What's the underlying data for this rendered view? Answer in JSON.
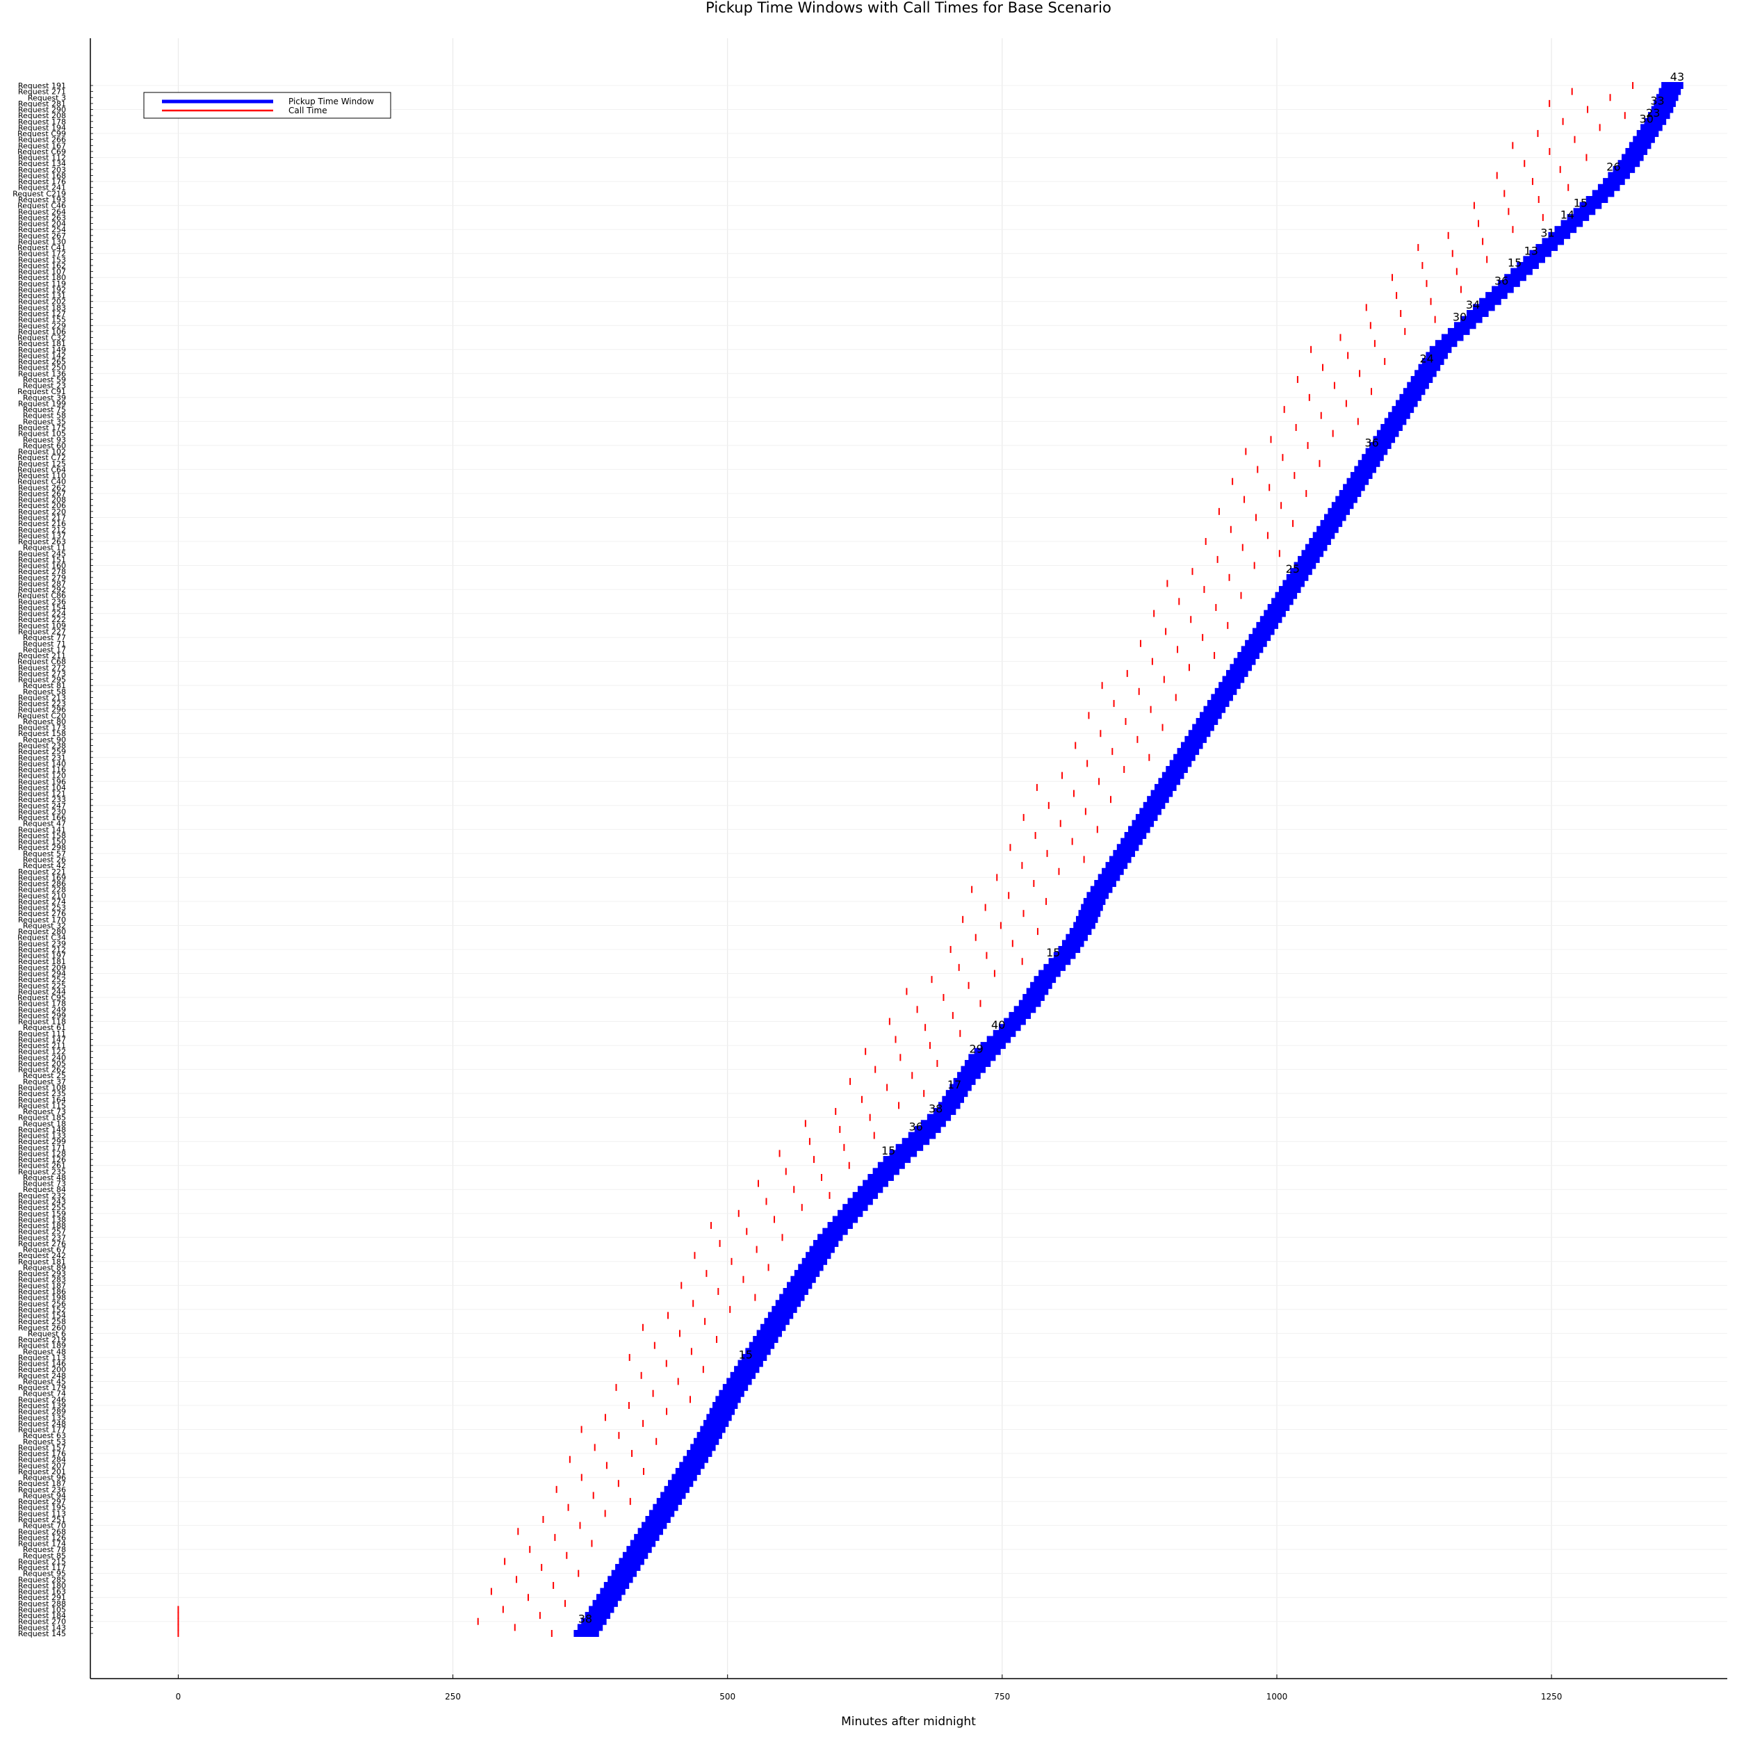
{
  "chart_data": {
    "type": "scatter",
    "title": "Pickup Time Windows with Call Times for Base Scenario",
    "xlabel": "Minutes after midnight",
    "ylabel": "",
    "xlim": [
      -80,
      1410
    ],
    "xticks": [
      0,
      250,
      500,
      750,
      1000,
      1250
    ],
    "grid": true,
    "legend": {
      "placement": "top-left",
      "entries": [
        {
          "label": "Pickup Time Window",
          "color": "#0000ff"
        },
        {
          "label": "Call Time",
          "color": "#ff0000"
        }
      ]
    },
    "series": [
      {
        "name": "Pickup Time Window",
        "color": "#0000ff",
        "marker": "horizontal band, one row per request, from pickup window start to end"
      },
      {
        "name": "Call Time",
        "color": "#ff0000",
        "marker": "short red tick per request at call time"
      }
    ],
    "request_count": 300,
    "y_tick_labels_top_to_bottom": [
      "Request 191",
      "Request 271",
      "Request 3",
      "Request 281",
      "Request 290",
      "Request 208",
      "Request 178",
      "Request 194",
      "Request C99",
      "Request 266",
      "Request 167",
      "Request C69",
      "Request 112",
      "Request 134",
      "Request 203",
      "Request 168",
      "Request 176",
      "Request 241",
      "Request C219",
      "Request 193",
      "Request C46",
      "Request 264",
      "Request 263",
      "Request 204",
      "Request 254",
      "Request 267",
      "Request 130",
      "Request C41",
      "Request 172",
      "Request 153",
      "Request 162",
      "Request 107",
      "Request 180",
      "Request 119",
      "Request 192",
      "Request 131",
      "Request 202",
      "Request 183",
      "Request 127",
      "Request 155",
      "Request 229",
      "Request 106",
      "Request C32",
      "Request 181",
      "Request 149",
      "Request 142",
      "Request 265",
      "Request 250",
      "Request 136",
      "Request 59",
      "Request 23",
      "Request C91",
      "Request 39",
      "Request 199",
      "Request 75",
      "Request 58",
      "Request 35",
      "Request 175",
      "Request 105",
      "Request 93",
      "Request 60",
      "Request 102",
      "Request C72",
      "Request 125",
      "Request C64",
      "Request 110",
      "Request C40",
      "Request 262",
      "Request 267",
      "Request 208",
      "Request 206",
      "Request 220",
      "Request 217",
      "Request 216",
      "Request 212",
      "Request 137",
      "Request 263",
      "Request 11",
      "Request 245",
      "Request 151",
      "Request 160",
      "Request 278",
      "Request 279",
      "Request 287",
      "Request 292",
      "Request C86",
      "Request 236",
      "Request 154",
      "Request 224",
      "Request 222",
      "Request 109",
      "Request 227",
      "Request 77",
      "Request 71",
      "Request 17",
      "Request 211",
      "Request C68",
      "Request 272",
      "Request 273",
      "Request 295",
      "Request 81",
      "Request 58",
      "Request 213",
      "Request 223",
      "Request 296",
      "Request C20",
      "Request 80",
      "Request 173",
      "Request 158",
      "Request 90",
      "Request 238",
      "Request 259",
      "Request 231",
      "Request 140",
      "Request 116",
      "Request 120",
      "Request 196",
      "Request 104",
      "Request 121",
      "Request 233",
      "Request 247",
      "Request 230",
      "Request 166",
      "Request 47",
      "Request 141",
      "Request 158",
      "Request 150",
      "Request 298",
      "Request 57",
      "Request 26",
      "Request 42",
      "Request 221",
      "Request 169",
      "Request 286",
      "Request 228",
      "Request 210",
      "Request 274",
      "Request 253",
      "Request 276",
      "Request 170",
      "Request 32",
      "Request 280",
      "Request C34",
      "Request 239",
      "Request 212",
      "Request 197",
      "Request 181",
      "Request 209",
      "Request 294",
      "Request 252",
      "Request 225",
      "Request 244",
      "Request C95",
      "Request 178",
      "Request 249",
      "Request 299",
      "Request 118",
      "Request 61",
      "Request 111",
      "Request 147",
      "Request 211",
      "Request 122",
      "Request 240",
      "Request 205",
      "Request 262",
      "Request 25",
      "Request 37",
      "Request 108",
      "Request 235",
      "Request 164",
      "Request 115",
      "Request 73",
      "Request 185",
      "Request 18",
      "Request 148",
      "Request 133",
      "Request 299",
      "Request 171",
      "Request 128",
      "Request 126",
      "Request 261",
      "Request 235",
      "Request 48",
      "Request 73",
      "Request 84",
      "Request 232",
      "Request 243",
      "Request 255",
      "Request 159",
      "Request 138",
      "Request 188",
      "Request 257",
      "Request 237",
      "Request 276",
      "Request 67",
      "Request 242",
      "Request 181",
      "Request 89",
      "Request 293",
      "Request 283",
      "Request 187",
      "Request 186",
      "Request 198",
      "Request 256",
      "Request 152",
      "Request 154",
      "Request 258",
      "Request 260",
      "Request 6",
      "Request 219",
      "Request 189",
      "Request 48",
      "Request 113",
      "Request 146",
      "Request 200",
      "Request 248",
      "Request 45",
      "Request 179",
      "Request 74",
      "Request 246",
      "Request 139",
      "Request 289",
      "Request 135",
      "Request 248",
      "Request 177",
      "Request 63",
      "Request 53",
      "Request 157",
      "Request 176",
      "Request 284",
      "Request 207",
      "Request 201",
      "Request 96",
      "Request 187",
      "Request 236",
      "Request 94",
      "Request 297",
      "Request 195",
      "Request 113",
      "Request 251",
      "Request 70",
      "Request 268",
      "Request 126",
      "Request 174",
      "Request 78",
      "Request 85",
      "Request 215",
      "Request 117",
      "Request 95",
      "Request 285",
      "Request 180",
      "Request 163",
      "Request 291",
      "Request 288",
      "Request 105",
      "Request 184",
      "Request 270",
      "Request 143",
      "Request 145"
    ],
    "call_time_cluster_at_zero": [
      0,
      0,
      0,
      0,
      0
    ],
    "window_points": [
      [
        360,
        383
      ],
      [
        375,
        398
      ],
      [
        390,
        413
      ],
      [
        405,
        428
      ],
      [
        420,
        443
      ],
      [
        435,
        458
      ],
      [
        450,
        473
      ],
      [
        465,
        488
      ],
      [
        478,
        501
      ],
      [
        490,
        513
      ],
      [
        505,
        528
      ],
      [
        520,
        543
      ],
      [
        535,
        558
      ],
      [
        550,
        573
      ],
      [
        565,
        588
      ],
      [
        580,
        603
      ],
      [
        600,
        623
      ],
      [
        620,
        643
      ],
      [
        640,
        665
      ],
      [
        665,
        690
      ],
      [
        690,
        710
      ],
      [
        705,
        725
      ],
      [
        720,
        745
      ],
      [
        745,
        765
      ],
      [
        765,
        785
      ],
      [
        780,
        800
      ],
      [
        800,
        820
      ],
      [
        815,
        835
      ],
      [
        825,
        845
      ],
      [
        840,
        860
      ],
      [
        855,
        875
      ],
      [
        870,
        890
      ],
      [
        885,
        905
      ],
      [
        900,
        920
      ],
      [
        915,
        935
      ],
      [
        930,
        950
      ],
      [
        945,
        965
      ],
      [
        960,
        980
      ],
      [
        975,
        995
      ],
      [
        990,
        1010
      ],
      [
        1005,
        1025
      ],
      [
        1020,
        1040
      ],
      [
        1035,
        1055
      ],
      [
        1050,
        1070
      ],
      [
        1065,
        1085
      ],
      [
        1080,
        1100
      ],
      [
        1095,
        1115
      ],
      [
        1110,
        1130
      ],
      [
        1125,
        1145
      ],
      [
        1140,
        1160
      ],
      [
        1165,
        1185
      ],
      [
        1190,
        1210
      ],
      [
        1215,
        1235
      ],
      [
        1240,
        1260
      ],
      [
        1265,
        1285
      ],
      [
        1290,
        1310
      ],
      [
        1310,
        1330
      ],
      [
        1325,
        1345
      ],
      [
        1340,
        1360
      ],
      [
        1350,
        1370
      ]
    ],
    "window_count_labels": [
      {
        "x": 364,
        "label": "38"
      },
      {
        "x": 740,
        "label": "40"
      },
      {
        "x": 790,
        "label": "15"
      },
      {
        "x": 1008,
        "label": "25"
      },
      {
        "x": 1130,
        "label": "24"
      },
      {
        "x": 1160,
        "label": "30"
      },
      {
        "x": 1172,
        "label": "34"
      },
      {
        "x": 1198,
        "label": "36"
      },
      {
        "x": 1225,
        "label": "13"
      },
      {
        "x": 1258,
        "label": "14"
      },
      {
        "x": 1336,
        "label": "23"
      },
      {
        "x": 1358,
        "label": "43"
      },
      {
        "x": 1340,
        "label": "33"
      },
      {
        "x": 1330,
        "label": "30"
      },
      {
        "x": 1300,
        "label": "26"
      },
      {
        "x": 1270,
        "label": "15"
      },
      {
        "x": 1240,
        "label": "31"
      },
      {
        "x": 1210,
        "label": "15"
      },
      {
        "x": 640,
        "label": "15"
      },
      {
        "x": 665,
        "label": "36"
      },
      {
        "x": 683,
        "label": "38"
      },
      {
        "x": 700,
        "label": "17"
      },
      {
        "x": 720,
        "label": "29"
      },
      {
        "x": 510,
        "label": "15"
      },
      {
        "x": 1080,
        "label": "36"
      }
    ]
  }
}
